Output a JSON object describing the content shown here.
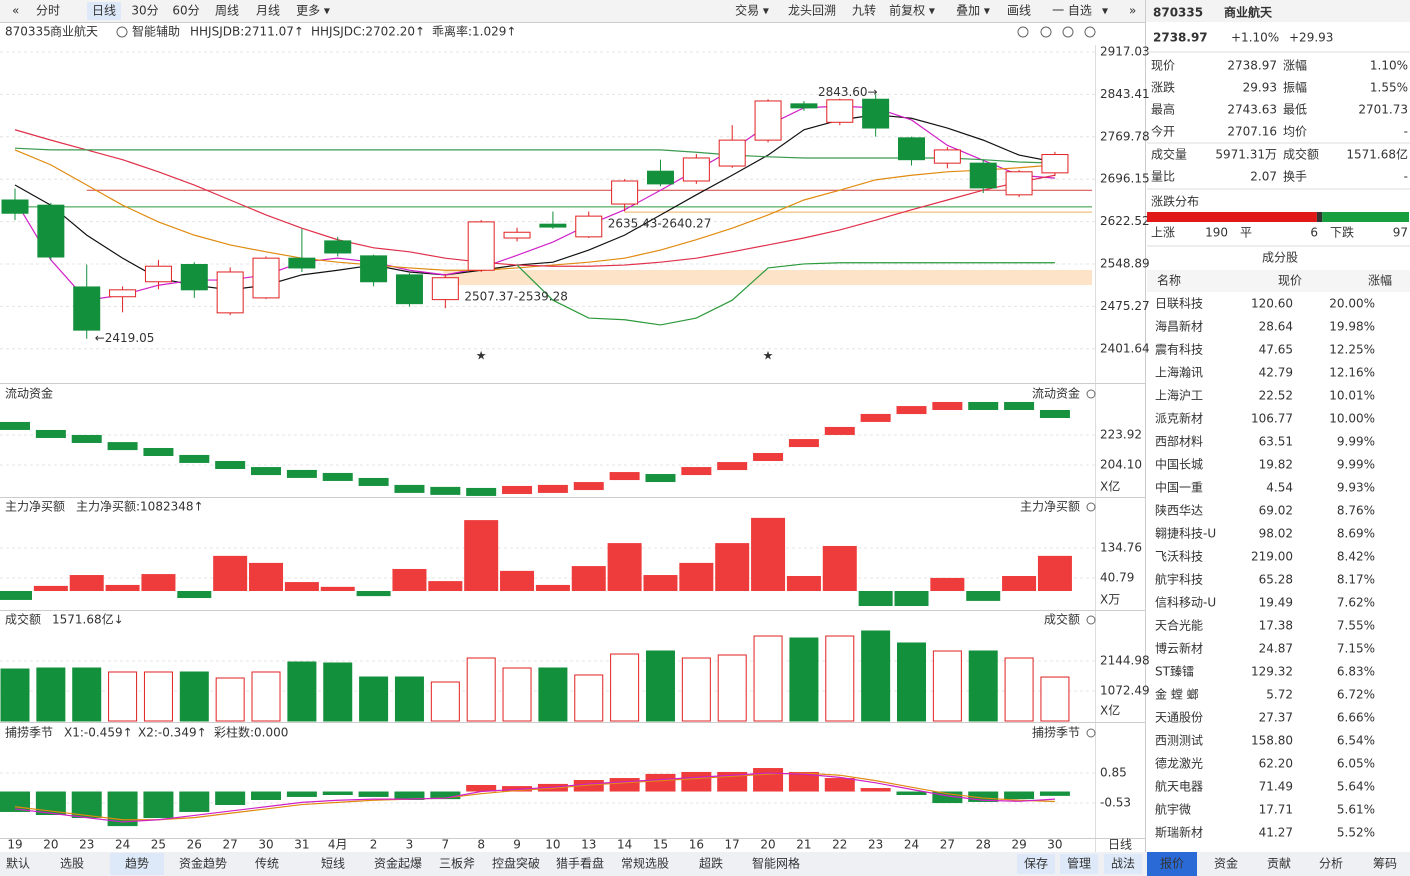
{
  "toolbar": {
    "left": [
      "分时",
      "日线",
      "30分",
      "60分",
      "周线",
      "月线",
      "更多 ▾"
    ],
    "active": 1,
    "right": [
      "交易 ▾",
      "龙头回溯",
      "九转",
      "前复权 ▾",
      "叠加 ▾",
      "画线",
      "一 自选",
      "▾"
    ]
  },
  "info_bar": {
    "code": "870335",
    "name": "商业航天",
    "assist": "智能辅助",
    "indicators": [
      {
        "text": "HHJSJDB:2711.07↑",
        "color": "#c98a00"
      },
      {
        "text": "HHJSJDC:2702.20↑",
        "color": "#e03030"
      },
      {
        "text": "乖离率:1.029↑",
        "color": "#e8701a"
      }
    ]
  },
  "main_chart": {
    "type": "candlestick",
    "categories": [
      "19",
      "20",
      "23",
      "24",
      "25",
      "26",
      "27",
      "30",
      "31",
      "4月",
      "2",
      "3",
      "7",
      "8",
      "9",
      "10",
      "13",
      "14",
      "15",
      "16",
      "17",
      "20",
      "21",
      "22",
      "23",
      "24",
      "27",
      "28",
      "29",
      "30"
    ],
    "open": [
      2660,
      2651,
      2509,
      2492,
      2518,
      2548,
      2464,
      2490,
      2559,
      2589,
      2563,
      2530,
      2487,
      2538,
      2594,
      2618,
      2596,
      2653,
      2710,
      2693,
      2719,
      2764,
      2827,
      2795,
      2835,
      2768,
      2724,
      2724,
      2669,
      2707.16
    ],
    "high": [
      2680,
      2655,
      2548,
      2510,
      2556,
      2552,
      2543,
      2562,
      2610,
      2596,
      2565,
      2533,
      2530,
      2625,
      2612,
      2640,
      2640,
      2696,
      2730,
      2740,
      2790,
      2835,
      2832,
      2836,
      2843.6,
      2770,
      2752,
      2730,
      2712,
      2743.63
    ],
    "low": [
      2625,
      2555,
      2419.05,
      2465,
      2505,
      2490,
      2460,
      2488,
      2535,
      2562,
      2510,
      2475,
      2472,
      2535,
      2588,
      2610,
      2594,
      2640,
      2684,
      2688,
      2716,
      2760,
      2815,
      2790,
      2770,
      2720,
      2715,
      2672,
      2665,
      2701.73
    ],
    "close": [
      2637,
      2561,
      2434,
      2504,
      2545,
      2504,
      2535,
      2559,
      2542,
      2568,
      2518,
      2480,
      2525,
      2622,
      2604,
      2613,
      2632,
      2693,
      2688,
      2733,
      2764,
      2832,
      2820,
      2834,
      2785,
      2730,
      2747,
      2681,
      2709,
      2738.97
    ],
    "up_color": "#e02020",
    "down_color": "#13903c",
    "ylim": [
      2347.4,
      2929.2
    ],
    "yticks": [
      2917.03,
      2843.41,
      2769.78,
      2696.15,
      2622.52,
      2548.89,
      2475.27,
      2401.64
    ],
    "grid": true,
    "lines": [
      {
        "color": "#111111",
        "values": [
          2686,
          2651,
          2599,
          2559,
          2524,
          2512,
          2504,
          2512,
          2530,
          2538,
          2547,
          2535,
          2530,
          2538,
          2547,
          2552,
          2573,
          2599,
          2634,
          2669,
          2703,
          2738,
          2782,
          2799,
          2808,
          2802,
          2785,
          2764,
          2738,
          2726
        ]
      },
      {
        "color": "#d020c8",
        "values": [
          2660,
          2556,
          2486,
          2495,
          2512,
          2521,
          2521,
          2530,
          2552,
          2559,
          2552,
          2538,
          2530,
          2542,
          2564,
          2587,
          2617,
          2643,
          2677,
          2712,
          2747,
          2790,
          2820,
          2823,
          2820,
          2799,
          2755,
          2729,
          2703,
          2698
        ]
      },
      {
        "color": "#e08a10",
        "values": [
          2747,
          2721,
          2686,
          2651,
          2622,
          2599,
          2582,
          2570,
          2559,
          2552,
          2547,
          2542,
          2538,
          2538,
          2542,
          2547,
          2552,
          2559,
          2573,
          2591,
          2611,
          2634,
          2660,
          2677,
          2695,
          2703,
          2709,
          2712,
          2716,
          2721
        ]
      },
      {
        "color": "#e0304a",
        "values": [
          2782,
          2764,
          2747,
          2730,
          2709,
          2686,
          2660,
          2634,
          2611,
          2591,
          2577,
          2570,
          2559,
          2552,
          2547,
          2545,
          2545,
          2547,
          2552,
          2559,
          2570,
          2582,
          2594,
          2608,
          2625,
          2643,
          2660,
          2677,
          2691,
          2703
        ]
      },
      {
        "color": "#3a9a50",
        "values": [
          2750,
          2747,
          2747,
          2747,
          2747,
          2747,
          2747,
          2747,
          2747,
          2747,
          2747,
          2747,
          2747,
          2747,
          2747,
          2747,
          2747,
          2747,
          2747,
          2743,
          2738,
          2735,
          2733,
          2733,
          2733,
          2733,
          2733,
          2730,
          2726,
          2724
        ]
      },
      {
        "color": "#2a9a3a",
        "values": [
          null,
          null,
          null,
          null,
          null,
          null,
          null,
          null,
          null,
          null,
          null,
          null,
          null,
          null,
          2547,
          2486,
          2455,
          2452,
          2443,
          2455,
          2486,
          2542,
          2549,
          2551,
          2551,
          2551,
          2551,
          2551,
          2551,
          2551
        ]
      }
    ],
    "hlines": [
      {
        "value": 2677,
        "color": "#d04040",
        "from": 2
      },
      {
        "value": 2639,
        "color": "#f0b060",
        "from": 17
      },
      {
        "value": 2648,
        "color": "#2a9a3a",
        "from": 0
      }
    ],
    "zone": {
      "from": 12,
      "low": 2512.4,
      "high": 2538.4,
      "color": "#fde3c8"
    },
    "signals": [
      13,
      21
    ],
    "annotations": {
      "high": "2843.60→",
      "low": "←2419.05",
      "gap1": "2635.43-2640.27",
      "gap2": "2507.37-2539.28"
    }
  },
  "flow_panel": {
    "title": "流动资金",
    "type": "step",
    "values": [
      229.9,
      224.6,
      221.3,
      216.6,
      212.7,
      208.1,
      204.1,
      200.1,
      198.2,
      196.2,
      192.9,
      188.3,
      187.0,
      186.3,
      187.6,
      188.3,
      190.2,
      196.8,
      195.5,
      200.1,
      203.4,
      209.4,
      218.6,
      226.6,
      235.2,
      240.4,
      243.1,
      243.1,
      243.1,
      237.8
    ],
    "ylim": [
      182.96,
      247.05
    ],
    "yticks": [
      223.92,
      {
        "value": 204.1,
        "label": "204.10"
      }
    ],
    "unit": "X亿"
  },
  "buy_panel": {
    "title": "主力净买额",
    "reading": "主力净买额:1082348↑",
    "type": "bar",
    "values": [
      -28,
      16,
      50,
      19,
      53,
      -22,
      110,
      88,
      28,
      13,
      -16,
      69,
      31,
      222,
      63,
      19,
      78,
      150,
      50,
      88,
      150,
      229,
      47,
      141,
      -47,
      -47,
      41,
      -31,
      47,
      110
    ],
    "ylim": [
      -59.5,
      238
    ],
    "yticks": [
      134.76,
      40.79
    ],
    "unit": "X万"
  },
  "turnover_panel": {
    "title": "成交额",
    "reading": "1571.68亿↓",
    "type": "bar",
    "values": [
      1859,
      1895,
      1895,
      1752,
      1752,
      1752,
      1537,
      1752,
      2109,
      2074,
      1573,
      1573,
      1394,
      2252,
      1895,
      1895,
      1645,
      2395,
      2503,
      2252,
      2360,
      3039,
      2967,
      3039,
      3218,
      2789,
      2503,
      2503,
      2252,
      1571.68
    ],
    "ylim": [
      0,
      3325
    ],
    "yticks": [
      2144.98,
      1072.49
    ],
    "unit": "X亿"
  },
  "season_panel": {
    "title": "捕捞季节",
    "readings": [
      {
        "text": "X1:-0.459↑",
        "color": "#e08a10"
      },
      {
        "text": "X2:-0.349↑",
        "color": "#d020c8"
      },
      {
        "text": "彩柱数:0.000",
        "color": "#2a9a3a"
      }
    ],
    "type": "bar",
    "values": [
      -0.94,
      -1.08,
      -1.22,
      -1.59,
      -1.22,
      -0.94,
      -0.62,
      -0.39,
      -0.25,
      -0.16,
      -0.25,
      -0.39,
      -0.35,
      0.3,
      0.25,
      0.35,
      0.53,
      0.62,
      0.81,
      0.9,
      0.9,
      1.08,
      0.9,
      0.62,
      0.16,
      -0.16,
      -0.53,
      -0.48,
      -0.35,
      -0.2
    ],
    "x1": [
      -0.7,
      -0.9,
      -1.1,
      -1.3,
      -1.3,
      -1.2,
      -1.0,
      -0.8,
      -0.6,
      -0.5,
      -0.4,
      -0.35,
      -0.3,
      -0.1,
      0.05,
      0.15,
      0.3,
      0.4,
      0.5,
      0.6,
      0.7,
      0.8,
      0.85,
      0.75,
      0.5,
      0.2,
      -0.1,
      -0.3,
      -0.4,
      -0.459
    ],
    "x2": [
      -0.8,
      -1.0,
      -1.2,
      -1.4,
      -1.3,
      -1.1,
      -0.9,
      -0.7,
      -0.5,
      -0.4,
      -0.35,
      -0.35,
      -0.3,
      0.0,
      0.1,
      0.2,
      0.35,
      0.45,
      0.55,
      0.65,
      0.75,
      0.85,
      0.8,
      0.65,
      0.4,
      0.1,
      -0.2,
      -0.4,
      -0.45,
      -0.349
    ],
    "ylim": [
      -2.0,
      2.37
    ],
    "yticks": [
      0.85,
      -0.53
    ]
  },
  "axis_label": "日线",
  "quote": {
    "code": "870335",
    "name": "商业航天",
    "price": "2738.97",
    "pct": "+1.10%",
    "change": "+29.93",
    "rows": [
      {
        "l1": "现价",
        "v1": "2738.97",
        "c1": "#e03030",
        "l2": "涨幅",
        "v2": "1.10%",
        "c2": "#e03030"
      },
      {
        "l1": "涨跌",
        "v1": "29.93",
        "c1": "#e03030",
        "l2": "振幅",
        "v2": "1.55%",
        "c2": "#222"
      },
      {
        "l1": "最高",
        "v1": "2743.63",
        "c1": "#e03030",
        "l2": "最低",
        "v2": "2701.73",
        "c2": "#13903c"
      },
      {
        "l1": "今开",
        "v1": "2707.16",
        "c1": "#13903c",
        "l2": "均价",
        "v2": "-",
        "c2": "#222"
      },
      {
        "l1": "成交量",
        "v1": "5971.31万",
        "c1": "#222",
        "l2": "成交额",
        "v2": "1571.68亿",
        "c2": "#222"
      },
      {
        "l1": "量比",
        "v1": "2.07",
        "c1": "#222",
        "l2": "换手",
        "v2": "-",
        "c2": "#222"
      }
    ]
  },
  "distribution": {
    "title": "涨跌分布",
    "up_label": "上涨",
    "up": 190,
    "flat_label": "平",
    "flat": 6,
    "down_label": "下跌",
    "down": 97
  },
  "components": {
    "title": "成分股",
    "headers": [
      "名称",
      "现价",
      "涨幅"
    ],
    "rows": [
      {
        "name": "日联科技",
        "price": "120.60",
        "change": "20.00%",
        "color": "#2a6ad6"
      },
      {
        "name": "海昌新材",
        "price": "28.64",
        "change": "19.98%",
        "color": "#2a6ad6"
      },
      {
        "name": "震有科技",
        "price": "47.65",
        "change": "12.25%",
        "color": "#222"
      },
      {
        "name": "上海瀚讯",
        "price": "42.79",
        "change": "12.16%",
        "color": "#2a6ad6"
      },
      {
        "name": "上海沪工",
        "price": "22.52",
        "change": "10.01%",
        "color": "#222"
      },
      {
        "name": "派克新材",
        "price": "106.77",
        "change": "10.00%",
        "color": "#2a6ad6"
      },
      {
        "name": "西部材料",
        "price": "63.51",
        "change": "9.99%",
        "color": "#2a6ad6"
      },
      {
        "name": "中国长城",
        "price": "19.82",
        "change": "9.99%",
        "color": "#222"
      },
      {
        "name": "中国一重",
        "price": "4.54",
        "change": "9.93%",
        "color": "#222"
      },
      {
        "name": "陕西华达",
        "price": "69.02",
        "change": "8.76%",
        "color": "#2a6ad6"
      },
      {
        "name": "翱捷科技-U",
        "price": "98.02",
        "change": "8.69%",
        "color": "#222"
      },
      {
        "name": "飞沃科技",
        "price": "219.00",
        "change": "8.42%",
        "color": "#2a6ad6"
      },
      {
        "name": "航宇科技",
        "price": "65.28",
        "change": "8.17%",
        "color": "#222"
      },
      {
        "name": "信科移动-U",
        "price": "19.49",
        "change": "7.62%",
        "color": "#222"
      },
      {
        "name": "天合光能",
        "price": "17.38",
        "change": "7.55%",
        "color": "#222"
      },
      {
        "name": "博云新材",
        "price": "24.87",
        "change": "7.15%",
        "color": "#2a6ad6"
      },
      {
        "name": "ST臻镭",
        "price": "129.32",
        "change": "6.83%",
        "color": "#222"
      },
      {
        "name": "金 螳 螂",
        "price": "5.72",
        "change": "6.72%",
        "color": "#2a6ad6"
      },
      {
        "name": "天通股份",
        "price": "27.37",
        "change": "6.66%",
        "color": "#2a6ad6"
      },
      {
        "name": "西测测试",
        "price": "158.80",
        "change": "6.54%",
        "color": "#e03030"
      },
      {
        "name": "德龙激光",
        "price": "62.20",
        "change": "6.05%",
        "color": "#222"
      },
      {
        "name": "航天电器",
        "price": "71.49",
        "change": "5.64%",
        "color": "#222"
      },
      {
        "name": "航宇微",
        "price": "17.71",
        "change": "5.61%",
        "color": "#2a6ad6"
      },
      {
        "name": "斯瑞新材",
        "price": "41.27",
        "change": "5.52%",
        "color": "#2a6ad6"
      }
    ]
  },
  "bottom_tabs": {
    "left": [
      "默认",
      "选股",
      "趋势",
      "资金趋势",
      "传统",
      "短线",
      "资金起爆",
      "三板斧",
      "控盘突破",
      "猎手看盘",
      "常规选股",
      "超跌",
      "智能网格"
    ],
    "active": 2,
    "actions": [
      "保存",
      "管理",
      "战法"
    ],
    "right": [
      "报价",
      "资金",
      "贡献",
      "分析",
      "筹码"
    ],
    "right_active": 0
  }
}
